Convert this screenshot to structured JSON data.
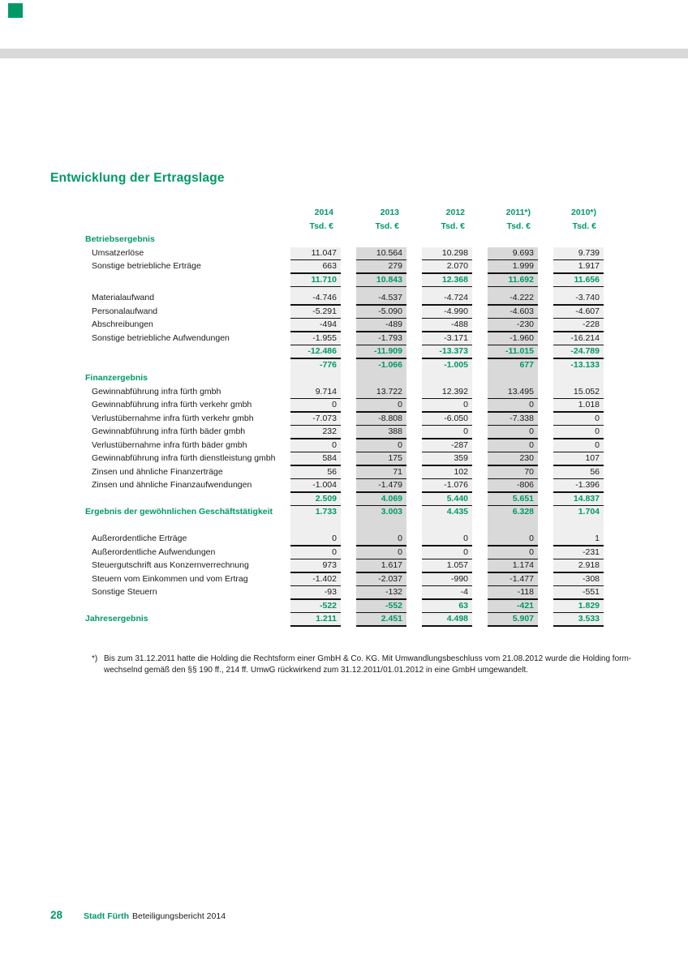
{
  "page": {
    "title": "Entwicklung der Ertragslage",
    "footnote": {
      "marker": "*)",
      "line1": "Bis zum 31.12.2011 hatte die Holding die Rechtsform einer GmbH & Co. KG. Mit Umwandlungsbeschluss vom 21.08.2012 wurde die Holding form-",
      "line2": "wechselnd gemäß den §§ 190 ff., 214 ff. UmwG rückwirkend zum 31.12.2011/01.01.2012 in eine GmbH umgewandelt."
    },
    "footer": {
      "page_number": "28",
      "brand": "Stadt Fürth",
      "report": "Beteiligungsbericht 2014"
    }
  },
  "colors": {
    "accent_green": "#009966",
    "band_light": "#efefef",
    "band_dark": "#d9d9d9",
    "top_bar": "#d9d9d9",
    "cell_border": "#111111"
  },
  "table": {
    "unit_label": "Tsd. €",
    "year_columns": [
      "2014",
      "2013",
      "2012",
      "2011*)",
      "2010*)"
    ],
    "rows": [
      {
        "kind": "head",
        "label": "",
        "values": [
          "2014",
          "2013",
          "2012",
          "2011*)",
          "2010*)"
        ]
      },
      {
        "kind": "head",
        "label": "",
        "values": [
          "Tsd. €",
          "Tsd. €",
          "Tsd. €",
          "Tsd. €",
          "Tsd. €"
        ]
      },
      {
        "kind": "sec0",
        "label": "Betriebsergebnis",
        "values": null
      },
      {
        "kind": "d",
        "label": "Umsatzerlöse",
        "values": [
          "11.047",
          "10.564",
          "10.298",
          "9.693",
          "9.739"
        ]
      },
      {
        "kind": "d",
        "label": "Sonstige betriebliche Erträge",
        "values": [
          "663",
          "279",
          "2.070",
          "1.999",
          "1.917"
        ]
      },
      {
        "kind": "t",
        "label": "",
        "values": [
          "11.710",
          "10.843",
          "12.368",
          "11.692",
          "11.656"
        ]
      },
      {
        "kind": "sp",
        "label": "",
        "values": null
      },
      {
        "kind": "d",
        "label": "Materialaufwand",
        "values": [
          "-4.746",
          "-4.537",
          "-4.724",
          "-4.222",
          "-3.740"
        ]
      },
      {
        "kind": "d",
        "label": "Personalaufwand",
        "values": [
          "-5.291",
          "-5.090",
          "-4.990",
          "-4.603",
          "-4.607"
        ]
      },
      {
        "kind": "d",
        "label": "Abschreibungen",
        "values": [
          "-494",
          "-489",
          "-488",
          "-230",
          "-228"
        ]
      },
      {
        "kind": "d",
        "label": "Sonstige betriebliche Aufwendungen",
        "values": [
          "-1.955",
          "-1.793",
          "-3.171",
          "-1.960",
          "-16.214"
        ]
      },
      {
        "kind": "t",
        "label": "",
        "values": [
          "-12.486",
          "-11.909",
          "-13.373",
          "-11.015",
          "-24.789"
        ]
      },
      {
        "kind": "r",
        "label": "",
        "values": [
          "-776",
          "-1.066",
          "-1.005",
          "677",
          "-13.133"
        ]
      },
      {
        "kind": "sec",
        "label": "Finanzergebnis",
        "values": null
      },
      {
        "kind": "d",
        "label": "Gewinnabführung infra fürth gmbh",
        "values": [
          "9.714",
          "13.722",
          "12.392",
          "13.495",
          "15.052"
        ]
      },
      {
        "kind": "d",
        "label": "Gewinnabführung infra fürth verkehr gmbh",
        "values": [
          "0",
          "0",
          "0",
          "0",
          "1.018"
        ]
      },
      {
        "kind": "d",
        "label": "Verlustübernahme infra fürth verkehr gmbh",
        "values": [
          "-7.073",
          "-8.808",
          "-6.050",
          "-7.338",
          "0"
        ]
      },
      {
        "kind": "d",
        "label": "Gewinnabführung infra fürth bäder gmbh",
        "values": [
          "232",
          "388",
          "0",
          "0",
          "0"
        ]
      },
      {
        "kind": "d",
        "label": "Verlustübernahme infra fürth bäder gmbh",
        "values": [
          "0",
          "0",
          "-287",
          "0",
          "0"
        ]
      },
      {
        "kind": "d",
        "label": "Gewinnabführung infra fürth dienstleistung gmbh",
        "values": [
          "584",
          "175",
          "359",
          "230",
          "107"
        ]
      },
      {
        "kind": "d",
        "label": "Zinsen und ähnliche Finanzerträge",
        "values": [
          "56",
          "71",
          "102",
          "70",
          "56"
        ]
      },
      {
        "kind": "d",
        "label": "Zinsen und ähnliche Finanzaufwendungen",
        "values": [
          "-1.004",
          "-1.479",
          "-1.076",
          "-806",
          "-1.396"
        ]
      },
      {
        "kind": "t",
        "label": "",
        "values": [
          "2.509",
          "4.069",
          "5.440",
          "5.651",
          "14.837"
        ]
      },
      {
        "kind": "rl",
        "label": "Ergebnis der gewöhnlichen Geschäftstätigkeit",
        "values": [
          "1.733",
          "3.003",
          "4.435",
          "6.328",
          "1.704"
        ]
      },
      {
        "kind": "bl",
        "label": "",
        "values": null
      },
      {
        "kind": "d",
        "label": "Außerordentliche Erträge",
        "values": [
          "0",
          "0",
          "0",
          "0",
          "1"
        ]
      },
      {
        "kind": "d",
        "label": "Außerordentliche Aufwendungen",
        "values": [
          "0",
          "0",
          "0",
          "0",
          "-231"
        ]
      },
      {
        "kind": "d",
        "label": "Steuergutschrift aus Konzernverrechnung",
        "values": [
          "973",
          "1.617",
          "1.057",
          "1.174",
          "2.918"
        ]
      },
      {
        "kind": "d",
        "label": "Steuern vom Einkommen und vom Ertrag",
        "values": [
          "-1.402",
          "-2.037",
          "-990",
          "-1.477",
          "-308"
        ]
      },
      {
        "kind": "d",
        "label": "Sonstige Steuern",
        "values": [
          "-93",
          "-132",
          "-4",
          "-118",
          "-551"
        ]
      },
      {
        "kind": "t",
        "label": "",
        "values": [
          "-522",
          "-552",
          "63",
          "-421",
          "1.829"
        ]
      },
      {
        "kind": "fl",
        "label": "Jahresergebnis",
        "values": [
          "1.211",
          "2.451",
          "4.498",
          "5.907",
          "3.533"
        ]
      }
    ]
  }
}
